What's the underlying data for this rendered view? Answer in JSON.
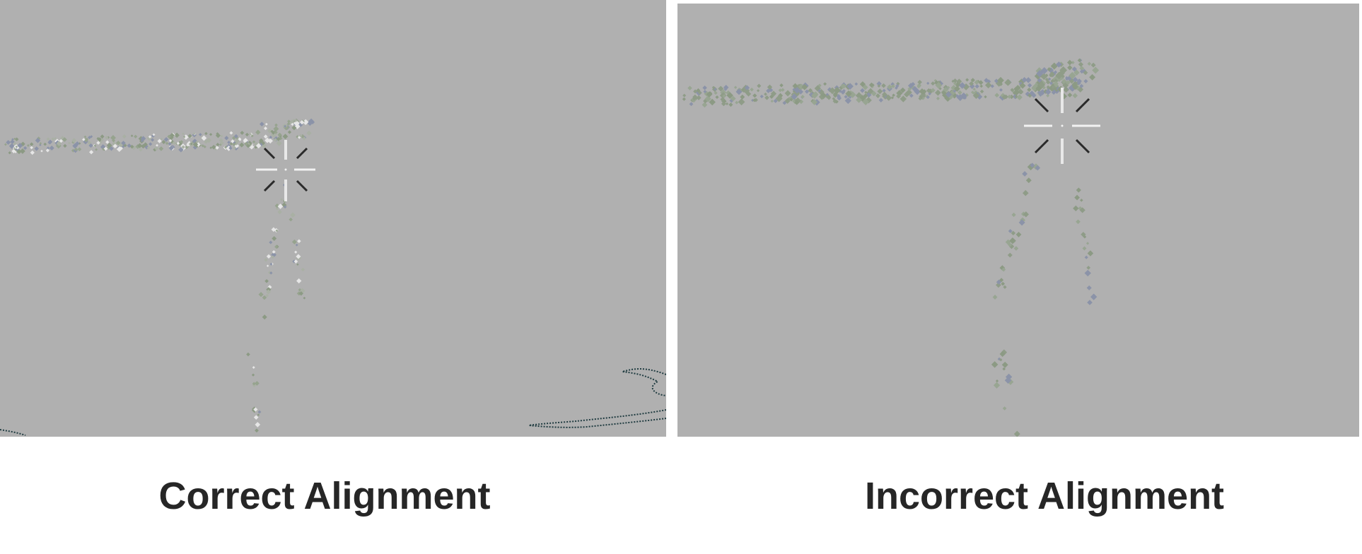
{
  "panels": [
    {
      "caption": "Correct Alignment",
      "background": "#b0b0b0",
      "point_colors": [
        "#8c9a84",
        "#96a38e",
        "#8b93a8",
        "#a9b0a4",
        "#e6e6e6"
      ]
    },
    {
      "caption": "Incorrect Alignment",
      "background": "#b0b0b0",
      "point_colors": [
        "#8c9a84",
        "#8f9c88",
        "#98a592",
        "#8b93a8"
      ]
    }
  ],
  "marker_icon": "crosshair-icon"
}
